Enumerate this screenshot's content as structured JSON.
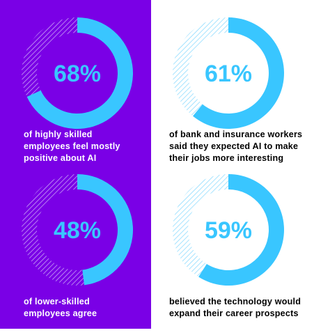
{
  "colors": {
    "purple_panel": "#7a00e6",
    "ring_purple_track": "#b784f2",
    "ring_cyan": "#39c6ff",
    "ring_white_track_lines": "#8fdcff",
    "hatch_on_purple": "#c9a2f6"
  },
  "chart_data": [
    {
      "type": "pie",
      "style": "donut",
      "value_percent": 68,
      "label": "68%",
      "caption": "of highly skilled\nemployees feel mostly\npositive about AI"
    },
    {
      "type": "pie",
      "style": "donut",
      "value_percent": 61,
      "label": "61%",
      "caption": "of bank and insurance workers\nsaid they expected AI to make\ntheir jobs more interesting"
    },
    {
      "type": "pie",
      "style": "donut",
      "value_percent": 48,
      "label": "48%",
      "caption": "of lower-skilled\nemployees agree"
    },
    {
      "type": "pie",
      "style": "donut",
      "value_percent": 59,
      "label": "59%",
      "caption": "believed the technology would\nexpand their career prospects"
    }
  ]
}
